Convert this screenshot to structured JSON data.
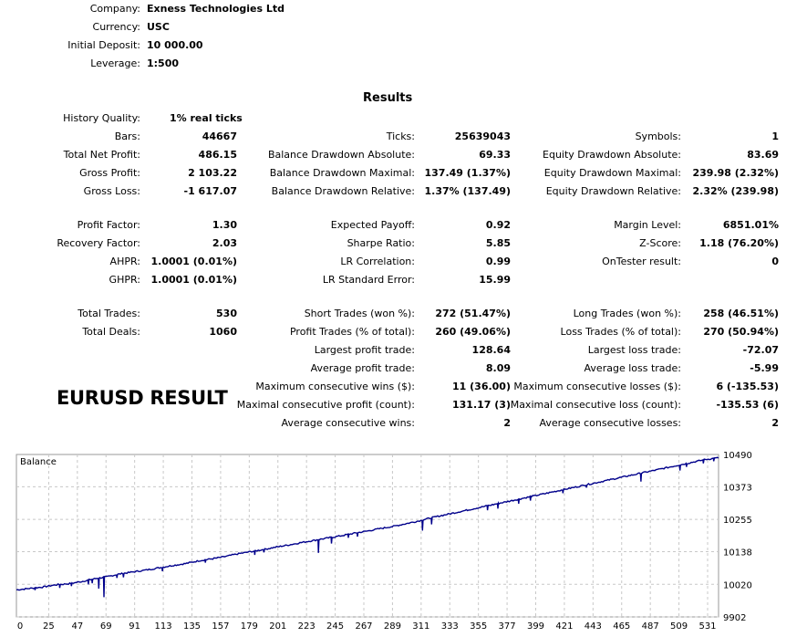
{
  "header": [
    {
      "label": "Company:",
      "value": "Exness Technologies Ltd"
    },
    {
      "label": "Currency:",
      "value": "USC"
    },
    {
      "label": "Initial Deposit:",
      "value": "10 000.00"
    },
    {
      "label": "Leverage:",
      "value": "1:500"
    }
  ],
  "results_title": "Results",
  "history": {
    "label": "History Quality:",
    "value": "1% real ticks"
  },
  "stats": {
    "bars": {
      "label": "Bars:",
      "value": "44667"
    },
    "total_net_profit": {
      "label": "Total Net Profit:",
      "value": "486.15"
    },
    "gross_profit": {
      "label": "Gross Profit:",
      "value": "2 103.22"
    },
    "gross_loss": {
      "label": "Gross Loss:",
      "value": "-1 617.07"
    },
    "profit_factor": {
      "label": "Profit Factor:",
      "value": "1.30"
    },
    "recovery_factor": {
      "label": "Recovery Factor:",
      "value": "2.03"
    },
    "ahpr": {
      "label": "AHPR:",
      "value": "1.0001 (0.01%)"
    },
    "ghpr": {
      "label": "GHPR:",
      "value": "1.0001 (0.01%)"
    },
    "total_trades": {
      "label": "Total Trades:",
      "value": "530"
    },
    "total_deals": {
      "label": "Total Deals:",
      "value": "1060"
    },
    "ticks": {
      "label": "Ticks:",
      "value": "25639043"
    },
    "balance_dd_abs": {
      "label": "Balance Drawdown Absolute:",
      "value": "69.33"
    },
    "balance_dd_max": {
      "label": "Balance Drawdown Maximal:",
      "value": "137.49 (1.37%)"
    },
    "balance_dd_rel": {
      "label": "Balance Drawdown Relative:",
      "value": "1.37% (137.49)"
    },
    "expected_payoff": {
      "label": "Expected Payoff:",
      "value": "0.92"
    },
    "sharpe": {
      "label": "Sharpe Ratio:",
      "value": "5.85"
    },
    "lr_corr": {
      "label": "LR Correlation:",
      "value": "0.99"
    },
    "lr_std": {
      "label": "LR Standard Error:",
      "value": "15.99"
    },
    "short_trades": {
      "label": "Short Trades (won %):",
      "value": "272 (51.47%)"
    },
    "profit_trades": {
      "label": "Profit Trades (% of total):",
      "value": "260 (49.06%)"
    },
    "largest_profit": {
      "label": "Largest profit trade:",
      "value": "128.64"
    },
    "avg_profit": {
      "label": "Average profit trade:",
      "value": "8.09"
    },
    "max_consec_wins": {
      "label": "Maximum consecutive wins ($):",
      "value": "11 (36.00)"
    },
    "maximal_consec_profit": {
      "label": "Maximal consecutive profit (count):",
      "value": "131.17 (3)"
    },
    "avg_consec_wins": {
      "label": "Average consecutive wins:",
      "value": "2"
    },
    "symbols": {
      "label": "Symbols:",
      "value": "1"
    },
    "equity_dd_abs": {
      "label": "Equity Drawdown Absolute:",
      "value": "83.69"
    },
    "equity_dd_max": {
      "label": "Equity Drawdown Maximal:",
      "value": "239.98 (2.32%)"
    },
    "equity_dd_rel": {
      "label": "Equity Drawdown Relative:",
      "value": "2.32% (239.98)"
    },
    "margin_level": {
      "label": "Margin Level:",
      "value": "6851.01%"
    },
    "zscore": {
      "label": "Z-Score:",
      "value": "1.18 (76.20%)"
    },
    "ontester": {
      "label": "OnTester result:",
      "value": "0"
    },
    "long_trades": {
      "label": "Long Trades (won %):",
      "value": "258 (46.51%)"
    },
    "loss_trades": {
      "label": "Loss Trades (% of total):",
      "value": "270 (50.94%)"
    },
    "largest_loss": {
      "label": "Largest loss trade:",
      "value": "-72.07"
    },
    "avg_loss": {
      "label": "Average loss trade:",
      "value": "-5.99"
    },
    "max_consec_losses": {
      "label": "Maximum consecutive losses ($):",
      "value": "6 (-135.53)"
    },
    "maximal_consec_loss": {
      "label": "Maximal consecutive loss (count):",
      "value": "-135.53 (6)"
    },
    "avg_consec_losses": {
      "label": "Average consecutive losses:",
      "value": "2"
    }
  },
  "overlay_text": "EURUSD RESULT",
  "chart_data": {
    "type": "line",
    "title": "Balance",
    "x_ticks": [
      "0",
      "25",
      "47",
      "69",
      "91",
      "113",
      "135",
      "157",
      "179",
      "201",
      "223",
      "245",
      "267",
      "289",
      "311",
      "333",
      "355",
      "377",
      "399",
      "421",
      "443",
      "465",
      "487",
      "509",
      "531"
    ],
    "y_ticks": [
      "10490",
      "10373",
      "10255",
      "10138",
      "10020",
      "9902"
    ],
    "ylim": [
      9902,
      10490
    ],
    "xlim": [
      0,
      540
    ],
    "grid": true,
    "line_color": "#00008b",
    "series": [
      {
        "values": [
          [
            0,
            10000
          ],
          [
            10,
            10005
          ],
          [
            20,
            10010
          ],
          [
            30,
            10018
          ],
          [
            40,
            10022
          ],
          [
            50,
            10030
          ],
          [
            60,
            10040
          ],
          [
            70,
            10048
          ],
          [
            80,
            10058
          ],
          [
            90,
            10065
          ],
          [
            100,
            10072
          ],
          [
            110,
            10080
          ],
          [
            120,
            10088
          ],
          [
            130,
            10095
          ],
          [
            140,
            10105
          ],
          [
            150,
            10112
          ],
          [
            160,
            10120
          ],
          [
            170,
            10130
          ],
          [
            180,
            10138
          ],
          [
            190,
            10146
          ],
          [
            200,
            10155
          ],
          [
            210,
            10163
          ],
          [
            220,
            10172
          ],
          [
            230,
            10180
          ],
          [
            240,
            10188
          ],
          [
            250,
            10196
          ],
          [
            260,
            10205
          ],
          [
            270,
            10213
          ],
          [
            280,
            10222
          ],
          [
            290,
            10230
          ],
          [
            300,
            10240
          ],
          [
            310,
            10250
          ],
          [
            320,
            10262
          ],
          [
            330,
            10272
          ],
          [
            340,
            10282
          ],
          [
            350,
            10292
          ],
          [
            360,
            10302
          ],
          [
            370,
            10312
          ],
          [
            380,
            10322
          ],
          [
            390,
            10332
          ],
          [
            400,
            10342
          ],
          [
            410,
            10352
          ],
          [
            420,
            10362
          ],
          [
            430,
            10372
          ],
          [
            440,
            10382
          ],
          [
            450,
            10392
          ],
          [
            460,
            10402
          ],
          [
            470,
            10412
          ],
          [
            480,
            10422
          ],
          [
            490,
            10432
          ],
          [
            500,
            10442
          ],
          [
            510,
            10452
          ],
          [
            520,
            10462
          ],
          [
            530,
            10472
          ],
          [
            540,
            10478
          ]
        ]
      }
    ],
    "dips": [
      [
        14,
        -8
      ],
      [
        33,
        -12
      ],
      [
        42,
        -10
      ],
      [
        55,
        -15
      ],
      [
        58,
        -14
      ],
      [
        63,
        -38
      ],
      [
        67,
        -72
      ],
      [
        77,
        -12
      ],
      [
        82,
        -14
      ],
      [
        112,
        -14
      ],
      [
        145,
        -10
      ],
      [
        183,
        -14
      ],
      [
        190,
        -10
      ],
      [
        232,
        -48
      ],
      [
        242,
        -22
      ],
      [
        255,
        -12
      ],
      [
        262,
        -14
      ],
      [
        312,
        -38
      ],
      [
        319,
        -24
      ],
      [
        362,
        -16
      ],
      [
        370,
        -18
      ],
      [
        386,
        -16
      ],
      [
        395,
        -14
      ],
      [
        420,
        -12
      ],
      [
        438,
        -10
      ],
      [
        480,
        -30
      ],
      [
        510,
        -20
      ],
      [
        515,
        -12
      ],
      [
        528,
        -12
      ],
      [
        536,
        -10
      ]
    ]
  }
}
